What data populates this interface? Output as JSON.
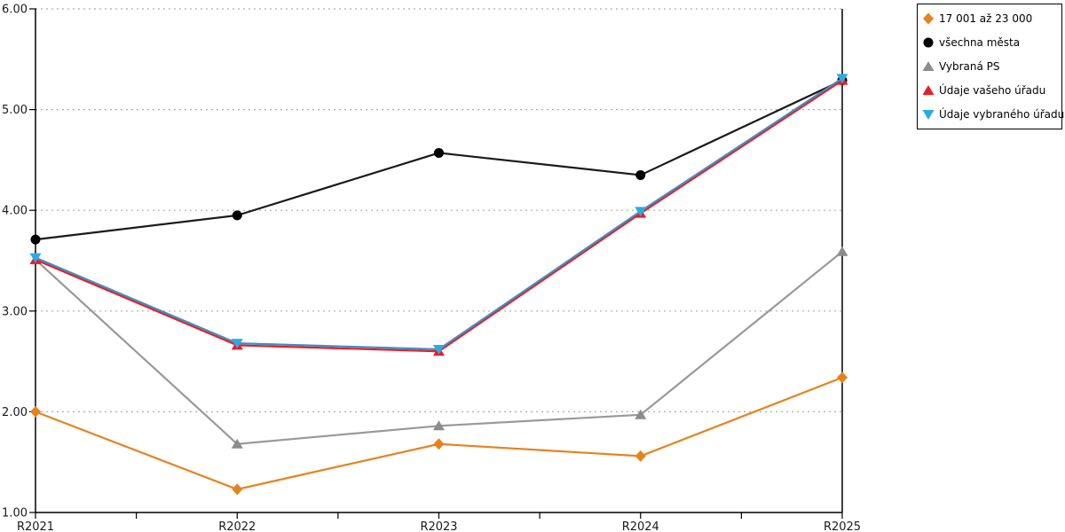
{
  "chart_data": {
    "type": "line",
    "categories": [
      "R2021",
      "R2022",
      "R2023",
      "R2024",
      "R2025"
    ],
    "series": [
      {
        "name": "17 001 až 23 000",
        "marker": "diamond",
        "color": "#E8821E",
        "line_color": "#E8821E",
        "values": [
          2.0,
          1.23,
          1.68,
          1.56,
          2.34
        ]
      },
      {
        "name": "všechna města",
        "marker": "circle",
        "color": "#000000",
        "line_color": "#1a1a1a",
        "values": [
          3.71,
          3.95,
          4.57,
          4.35,
          5.29
        ]
      },
      {
        "name": "Vybraná PS",
        "marker": "triangle-up",
        "color": "#8C8C8C",
        "line_color": "#999999",
        "values": [
          3.51,
          1.68,
          1.86,
          1.97,
          3.59
        ]
      },
      {
        "name": "Údaje vašeho úřadu",
        "marker": "triangle-up",
        "color": "#EC1C24",
        "line_color": "#EC1C24",
        "values": [
          3.51,
          2.66,
          2.6,
          3.97,
          5.29
        ]
      },
      {
        "name": "Údaje vybraného úřadu",
        "marker": "triangle-down",
        "color": "#29ABE2",
        "line_color": "#3D8EC4",
        "values": [
          3.53,
          2.68,
          2.62,
          3.99,
          5.31
        ]
      }
    ],
    "ylim": [
      1,
      6
    ],
    "yticks": [
      "6.00",
      "5.00",
      "4.00",
      "3.00",
      "2.00",
      "1.00"
    ],
    "xlabel": "",
    "ylabel": "",
    "grid": "horizontal-dotted",
    "grid_color": "#ADADAD",
    "axis_color": "#000000",
    "legend_position": "top-right"
  }
}
